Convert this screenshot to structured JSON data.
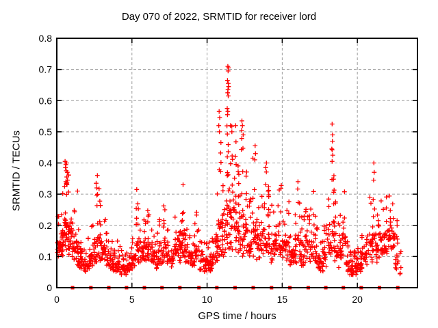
{
  "chart_data": {
    "type": "scatter",
    "title": "Day 070 of 2022, SRMTID for receiver lord",
    "xlabel": "GPS time / hours",
    "ylabel": "SRMTID / TECUs",
    "xlim": [
      0,
      24
    ],
    "ylim": [
      0,
      0.8
    ],
    "x_ticks": {
      "values": [
        0,
        5,
        10,
        15,
        20
      ],
      "labels": [
        "0",
        "5",
        "10",
        "15",
        "20"
      ]
    },
    "y_ticks": {
      "values": [
        0,
        0.1,
        0.2,
        0.3,
        0.4,
        0.5,
        0.6,
        0.7,
        0.8
      ],
      "labels": [
        "0",
        "0.1",
        "0.2",
        "0.3",
        "0.4",
        "0.5",
        "0.6",
        "0.7",
        "0.8"
      ]
    },
    "grid": {
      "shown": true,
      "style": "dashed",
      "color": "#9a9a9a"
    },
    "legend": "none",
    "background_color": "#ffffff",
    "axis_color": "#000000",
    "series": [
      {
        "name": "srmtid-scatter",
        "marker": "plus",
        "color": "#ff0000",
        "bin_width": 0.25,
        "envelope_bins": [
          [
            0.0,
            0.09,
            0.25,
            22
          ],
          [
            0.25,
            0.1,
            0.32,
            24
          ],
          [
            0.5,
            0.12,
            0.41,
            28
          ],
          [
            0.75,
            0.1,
            0.38,
            24
          ],
          [
            1.0,
            0.08,
            0.26,
            20
          ],
          [
            1.25,
            0.07,
            0.3,
            18
          ],
          [
            1.5,
            0.06,
            0.18,
            18
          ],
          [
            1.75,
            0.05,
            0.15,
            16
          ],
          [
            2.0,
            0.06,
            0.16,
            16
          ],
          [
            2.25,
            0.07,
            0.2,
            16
          ],
          [
            2.5,
            0.08,
            0.31,
            20
          ],
          [
            2.75,
            0.08,
            0.34,
            20
          ],
          [
            3.0,
            0.08,
            0.22,
            18
          ],
          [
            3.25,
            0.07,
            0.18,
            16
          ],
          [
            3.5,
            0.06,
            0.16,
            16
          ],
          [
            3.75,
            0.05,
            0.14,
            16
          ],
          [
            4.0,
            0.05,
            0.16,
            16
          ],
          [
            4.25,
            0.04,
            0.13,
            16
          ],
          [
            4.5,
            0.04,
            0.12,
            16
          ],
          [
            4.75,
            0.05,
            0.13,
            16
          ],
          [
            5.0,
            0.06,
            0.18,
            16
          ],
          [
            5.25,
            0.08,
            0.3,
            18
          ],
          [
            5.5,
            0.08,
            0.22,
            16
          ],
          [
            5.75,
            0.08,
            0.26,
            18
          ],
          [
            6.0,
            0.08,
            0.25,
            18
          ],
          [
            6.25,
            0.07,
            0.2,
            16
          ],
          [
            6.5,
            0.06,
            0.18,
            16
          ],
          [
            6.75,
            0.07,
            0.22,
            16
          ],
          [
            7.0,
            0.08,
            0.28,
            18
          ],
          [
            7.25,
            0.07,
            0.2,
            16
          ],
          [
            7.5,
            0.06,
            0.18,
            16
          ],
          [
            7.75,
            0.08,
            0.25,
            16
          ],
          [
            8.0,
            0.08,
            0.28,
            18
          ],
          [
            8.25,
            0.1,
            0.32,
            18
          ],
          [
            8.5,
            0.08,
            0.25,
            16
          ],
          [
            8.75,
            0.07,
            0.2,
            16
          ],
          [
            9.0,
            0.06,
            0.22,
            16
          ],
          [
            9.25,
            0.06,
            0.25,
            16
          ],
          [
            9.5,
            0.05,
            0.18,
            16
          ],
          [
            9.75,
            0.05,
            0.15,
            16
          ],
          [
            10.0,
            0.05,
            0.16,
            18
          ],
          [
            10.25,
            0.06,
            0.2,
            18
          ],
          [
            10.5,
            0.08,
            0.35,
            20
          ],
          [
            10.75,
            0.1,
            0.48,
            20
          ],
          [
            11.0,
            0.1,
            0.45,
            20
          ],
          [
            11.25,
            0.12,
            0.58,
            26
          ],
          [
            11.5,
            0.12,
            0.55,
            22
          ],
          [
            11.75,
            0.12,
            0.5,
            20
          ],
          [
            12.0,
            0.1,
            0.45,
            20
          ],
          [
            12.25,
            0.1,
            0.48,
            20
          ],
          [
            12.5,
            0.1,
            0.42,
            18
          ],
          [
            12.75,
            0.1,
            0.35,
            18
          ],
          [
            13.0,
            0.1,
            0.42,
            18
          ],
          [
            13.25,
            0.09,
            0.35,
            18
          ],
          [
            13.5,
            0.1,
            0.32,
            18
          ],
          [
            13.75,
            0.1,
            0.38,
            18
          ],
          [
            14.0,
            0.09,
            0.35,
            18
          ],
          [
            14.25,
            0.08,
            0.28,
            16
          ],
          [
            14.5,
            0.08,
            0.3,
            16
          ],
          [
            14.75,
            0.09,
            0.33,
            16
          ],
          [
            15.0,
            0.08,
            0.3,
            16
          ],
          [
            15.25,
            0.08,
            0.28,
            16
          ],
          [
            15.5,
            0.07,
            0.22,
            16
          ],
          [
            15.75,
            0.07,
            0.25,
            16
          ],
          [
            16.0,
            0.08,
            0.34,
            16
          ],
          [
            16.25,
            0.07,
            0.24,
            16
          ],
          [
            16.5,
            0.08,
            0.3,
            16
          ],
          [
            16.75,
            0.08,
            0.28,
            16
          ],
          [
            17.0,
            0.08,
            0.31,
            16
          ],
          [
            17.25,
            0.06,
            0.2,
            16
          ],
          [
            17.5,
            0.05,
            0.18,
            16
          ],
          [
            17.75,
            0.06,
            0.2,
            16
          ],
          [
            18.0,
            0.08,
            0.3,
            16
          ],
          [
            18.25,
            0.1,
            0.45,
            20
          ],
          [
            18.5,
            0.08,
            0.35,
            16
          ],
          [
            18.75,
            0.06,
            0.25,
            16
          ],
          [
            19.0,
            0.08,
            0.32,
            16
          ],
          [
            19.25,
            0.05,
            0.15,
            16
          ],
          [
            19.5,
            0.04,
            0.12,
            18
          ],
          [
            19.75,
            0.04,
            0.12,
            18
          ],
          [
            20.0,
            0.05,
            0.13,
            16
          ],
          [
            20.25,
            0.06,
            0.18,
            16
          ],
          [
            20.5,
            0.07,
            0.2,
            16
          ],
          [
            20.75,
            0.08,
            0.3,
            16
          ],
          [
            21.0,
            0.1,
            0.36,
            18
          ],
          [
            21.25,
            0.08,
            0.25,
            16
          ],
          [
            21.5,
            0.1,
            0.28,
            16
          ],
          [
            21.75,
            0.1,
            0.32,
            18
          ],
          [
            22.0,
            0.1,
            0.31,
            18
          ],
          [
            22.25,
            0.12,
            0.28,
            16
          ],
          [
            22.5,
            0.05,
            0.22,
            14
          ],
          [
            22.75,
            0.04,
            0.12,
            5
          ]
        ],
        "outlier_points": [
          [
            0.52,
            0.325
          ],
          [
            0.55,
            0.405
          ],
          [
            0.58,
            0.385
          ],
          [
            0.6,
            0.395
          ],
          [
            0.6,
            0.34
          ],
          [
            0.63,
            0.375
          ],
          [
            0.65,
            0.4
          ],
          [
            0.66,
            0.355
          ],
          [
            0.68,
            0.33
          ],
          [
            0.7,
            0.37
          ],
          [
            0.72,
            0.345
          ],
          [
            1.38,
            0.31
          ],
          [
            2.62,
            0.335
          ],
          [
            2.66,
            0.32
          ],
          [
            2.7,
            0.36
          ],
          [
            5.32,
            0.315
          ],
          [
            8.4,
            0.33
          ],
          [
            10.78,
            0.52
          ],
          [
            10.8,
            0.565
          ],
          [
            10.82,
            0.5
          ],
          [
            10.84,
            0.545
          ],
          [
            11.34,
            0.575
          ],
          [
            11.36,
            0.665
          ],
          [
            11.36,
            0.555
          ],
          [
            11.37,
            0.625
          ],
          [
            11.38,
            0.71
          ],
          [
            11.38,
            0.565
          ],
          [
            11.39,
            0.635
          ],
          [
            11.4,
            0.695
          ],
          [
            11.41,
            0.655
          ],
          [
            11.41,
            0.615
          ],
          [
            11.42,
            0.705
          ],
          [
            11.43,
            0.645
          ],
          [
            11.55,
            0.52
          ],
          [
            11.65,
            0.5
          ],
          [
            11.9,
            0.52
          ],
          [
            12.3,
            0.505
          ],
          [
            12.32,
            0.535
          ],
          [
            12.35,
            0.52
          ],
          [
            12.4,
            0.49
          ],
          [
            13.18,
            0.41
          ],
          [
            13.2,
            0.455
          ],
          [
            13.22,
            0.43
          ],
          [
            13.9,
            0.385
          ],
          [
            13.95,
            0.4
          ],
          [
            16.05,
            0.34
          ],
          [
            18.3,
            0.445
          ],
          [
            18.32,
            0.525
          ],
          [
            18.32,
            0.405
          ],
          [
            18.34,
            0.47
          ],
          [
            18.35,
            0.49
          ],
          [
            18.36,
            0.425
          ],
          [
            21.08,
            0.345
          ],
          [
            21.1,
            0.4
          ],
          [
            21.12,
            0.37
          ]
        ]
      },
      {
        "name": "baseline-square-markers",
        "marker": "filled-square",
        "color": "#ff0000",
        "y": 0,
        "x": [
          1.05,
          2.27,
          3.46,
          4.64,
          5.83,
          7.0,
          8.19,
          9.46,
          10.65,
          11.86,
          13.07,
          14.29,
          15.51,
          16.73,
          17.9,
          19.07,
          20.26,
          21.47,
          22.69
        ]
      }
    ]
  }
}
